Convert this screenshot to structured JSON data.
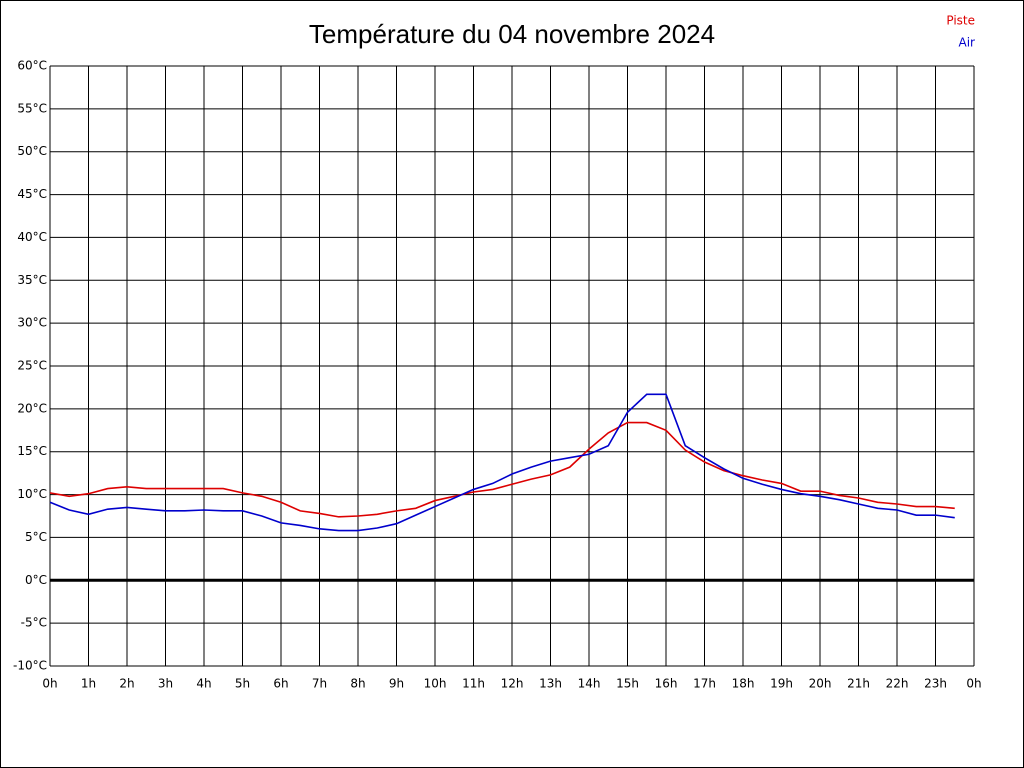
{
  "chart_data": {
    "type": "line",
    "title": "Température du 04 novembre 2024",
    "x": [
      0,
      0.5,
      1,
      1.5,
      2,
      2.5,
      3,
      3.5,
      4,
      4.5,
      5,
      5.5,
      6,
      6.5,
      7,
      7.5,
      8,
      8.5,
      9,
      9.5,
      10,
      10.5,
      11,
      11.5,
      12,
      12.5,
      13,
      13.5,
      14,
      14.5,
      15,
      15.5,
      16,
      16.5,
      17,
      17.5,
      18,
      18.5,
      19,
      19.5,
      20,
      20.5,
      21,
      21.5,
      22,
      22.5,
      23,
      23.5
    ],
    "series": [
      {
        "name": "Piste",
        "color": "#dd0000",
        "values": [
          10.2,
          9.8,
          10.1,
          10.7,
          10.9,
          10.7,
          10.7,
          10.7,
          10.7,
          10.7,
          10.2,
          9.8,
          9.1,
          8.1,
          7.8,
          7.4,
          7.5,
          7.7,
          8.1,
          8.4,
          9.3,
          9.8,
          10.3,
          10.6,
          11.2,
          11.8,
          12.3,
          13.2,
          15.3,
          17.2,
          18.4,
          18.4,
          17.5,
          15.2,
          13.8,
          12.8,
          12.2,
          11.7,
          11.3,
          10.4,
          10.4,
          9.9,
          9.6,
          9.1,
          8.9,
          8.6,
          8.6,
          8.4
        ]
      },
      {
        "name": "Air",
        "color": "#0000cc",
        "values": [
          9.1,
          8.2,
          7.7,
          8.3,
          8.5,
          8.3,
          8.1,
          8.1,
          8.2,
          8.1,
          8.1,
          7.5,
          6.7,
          6.4,
          6.0,
          5.8,
          5.8,
          6.1,
          6.6,
          7.6,
          8.6,
          9.6,
          10.6,
          11.3,
          12.4,
          13.2,
          13.9,
          14.3,
          14.7,
          15.7,
          19.6,
          21.7,
          21.7,
          15.7,
          14.3,
          13.0,
          11.9,
          11.2,
          10.6,
          10.1,
          9.8,
          9.4,
          8.9,
          8.4,
          8.2,
          7.6,
          7.6,
          7.3
        ]
      }
    ],
    "xlim": [
      0,
      24
    ],
    "xticks": [
      {
        "value": 0,
        "label": "0h"
      },
      {
        "value": 1,
        "label": "1h"
      },
      {
        "value": 2,
        "label": "2h"
      },
      {
        "value": 3,
        "label": "3h"
      },
      {
        "value": 4,
        "label": "4h"
      },
      {
        "value": 5,
        "label": "5h"
      },
      {
        "value": 6,
        "label": "6h"
      },
      {
        "value": 7,
        "label": "7h"
      },
      {
        "value": 8,
        "label": "8h"
      },
      {
        "value": 9,
        "label": "9h"
      },
      {
        "value": 10,
        "label": "10h"
      },
      {
        "value": 11,
        "label": "11h"
      },
      {
        "value": 12,
        "label": "12h"
      },
      {
        "value": 13,
        "label": "13h"
      },
      {
        "value": 14,
        "label": "14h"
      },
      {
        "value": 15,
        "label": "15h"
      },
      {
        "value": 16,
        "label": "16h"
      },
      {
        "value": 17,
        "label": "17h"
      },
      {
        "value": 18,
        "label": "18h"
      },
      {
        "value": 19,
        "label": "19h"
      },
      {
        "value": 20,
        "label": "20h"
      },
      {
        "value": 21,
        "label": "21h"
      },
      {
        "value": 22,
        "label": "22h"
      },
      {
        "value": 23,
        "label": "23h"
      },
      {
        "value": 24,
        "label": "0h"
      }
    ],
    "ylim": [
      -10,
      60
    ],
    "yticks": [
      {
        "value": -10,
        "label": "-10°C"
      },
      {
        "value": -5,
        "label": "-5°C"
      },
      {
        "value": 0,
        "label": "0°C"
      },
      {
        "value": 5,
        "label": "5°C"
      },
      {
        "value": 10,
        "label": "10°C"
      },
      {
        "value": 15,
        "label": "15°C"
      },
      {
        "value": 20,
        "label": "20°C"
      },
      {
        "value": 25,
        "label": "25°C"
      },
      {
        "value": 30,
        "label": "30°C"
      },
      {
        "value": 35,
        "label": "35°C"
      },
      {
        "value": 40,
        "label": "40°C"
      },
      {
        "value": 45,
        "label": "45°C"
      },
      {
        "value": 50,
        "label": "50°C"
      },
      {
        "value": 55,
        "label": "55°C"
      },
      {
        "value": 60,
        "label": "60°C"
      }
    ],
    "grid": true,
    "zero_line": true,
    "legend": "top-right"
  }
}
